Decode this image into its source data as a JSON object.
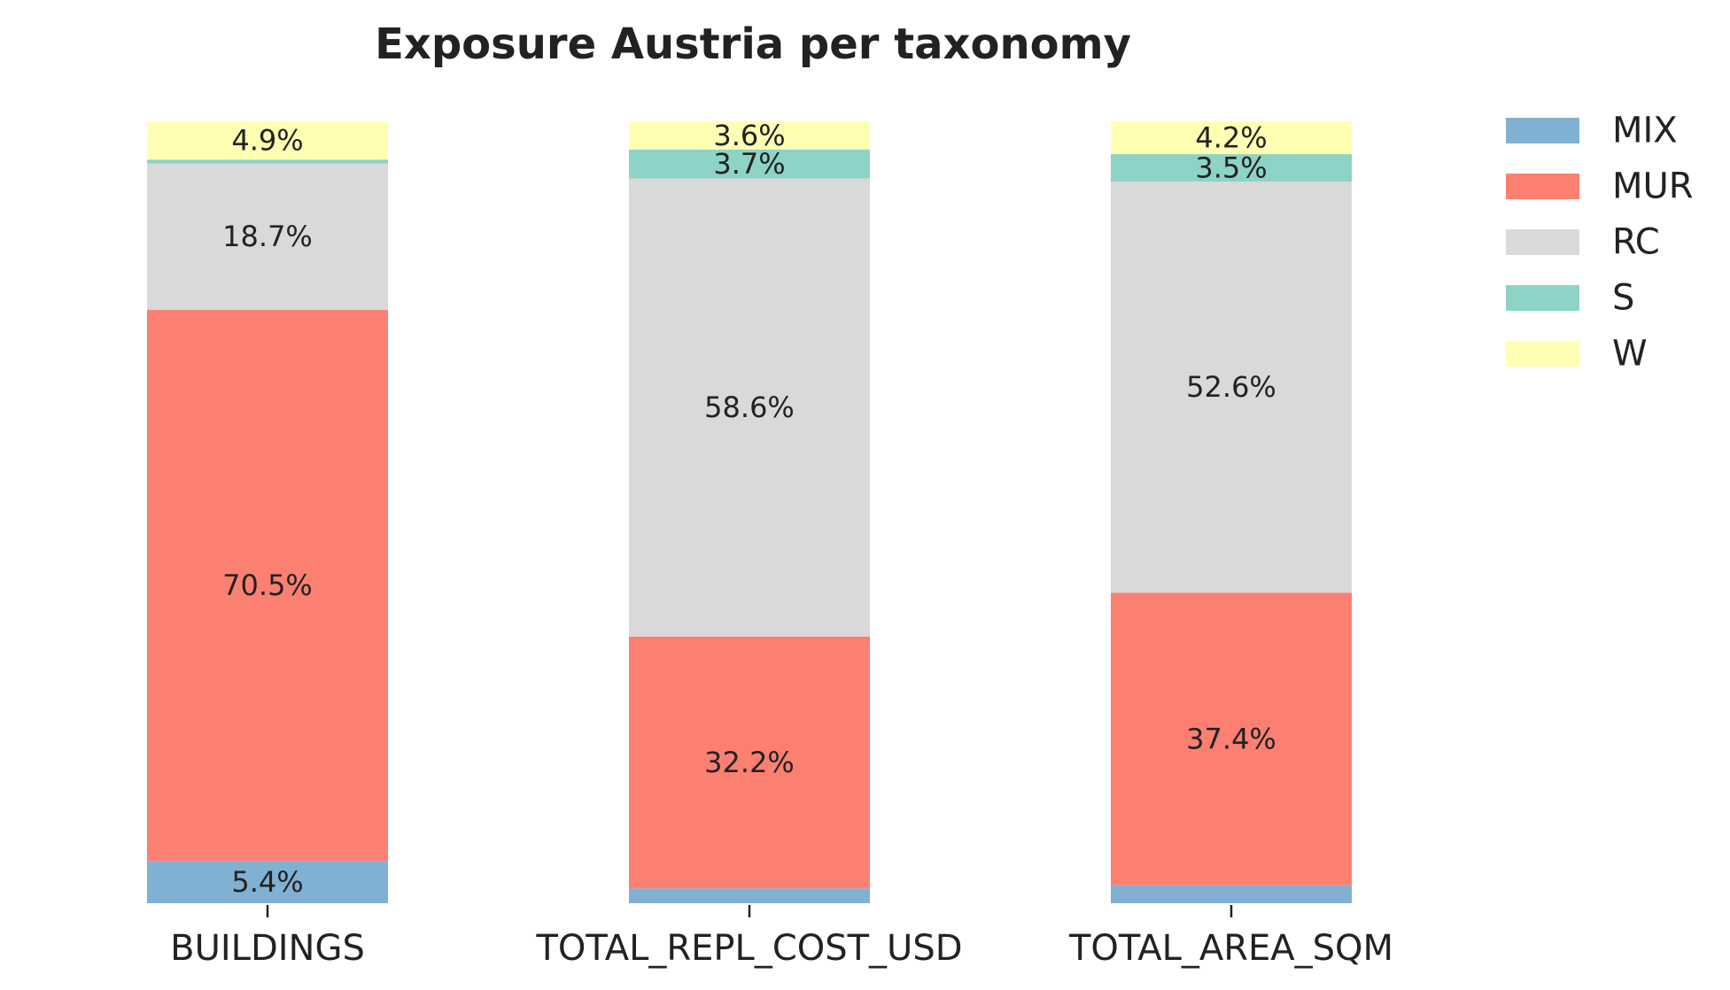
{
  "chart_data": {
    "type": "bar",
    "stacked": true,
    "title": "Exposure Austria per taxonomy",
    "xlabel": "",
    "ylabel": "",
    "ylim": [
      0,
      100
    ],
    "grid": false,
    "legend_position": "top-right",
    "categories": [
      "BUILDINGS",
      "TOTAL_REPL_COST_USD",
      "TOTAL_AREA_SQM"
    ],
    "series": [
      {
        "name": "MIX",
        "color": "#80b1d3",
        "values": [
          5.4,
          1.9,
          2.3
        ],
        "labels": [
          "5.4%",
          "",
          ""
        ]
      },
      {
        "name": "MUR",
        "color": "#fb8072",
        "values": [
          70.5,
          32.2,
          37.4
        ],
        "labels": [
          "70.5%",
          "32.2%",
          "37.4%"
        ]
      },
      {
        "name": "RC",
        "color": "#d9d9d9",
        "values": [
          18.7,
          58.6,
          52.6
        ],
        "labels": [
          "18.7%",
          "58.6%",
          "52.6%"
        ]
      },
      {
        "name": "S",
        "color": "#8dd3c7",
        "values": [
          0.5,
          3.7,
          3.5
        ],
        "labels": [
          "",
          "3.7%",
          "3.5%"
        ]
      },
      {
        "name": "W",
        "color": "#ffffb3",
        "values": [
          4.9,
          3.6,
          4.2
        ],
        "labels": [
          "4.9%",
          "3.6%",
          "4.2%"
        ]
      }
    ]
  }
}
